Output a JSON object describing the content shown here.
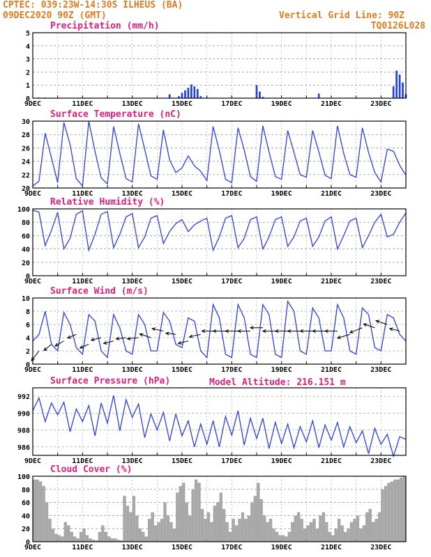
{
  "header": {
    "line1": "CPTEC:  039:23W-14:30S  ILHEUS (BA)",
    "line2": "09DEC2020 90Z (GMT)",
    "grid_note": "Vertical Grid Line: 90Z",
    "code": "TQ0126L028"
  },
  "model_altitude": "Model Altitude: 216.151  m",
  "colors": {
    "header": "#e07b1f",
    "title": "#e0207a",
    "line": "#2a3fe6",
    "bar": "#1f3fe6",
    "cloud": "#a8a8a8",
    "arrow": "#000000"
  },
  "chart_data": [
    {
      "type": "bar",
      "title": "Precipitation  (mm/h)",
      "ylim": [
        0,
        5
      ],
      "yticks": [
        0,
        1,
        2,
        3,
        4,
        5
      ],
      "x_tick_labels": [
        "9DEC",
        "11DEC",
        "13DEC",
        "15DEC",
        "17DEC",
        "19DEC",
        "21DEC",
        "23DEC"
      ],
      "x_range_days": [
        9,
        24
      ],
      "x_step_hours": 3,
      "series": [
        {
          "x_days": [
            9.25,
            9.5,
            14.5,
            14.875,
            15.0,
            15.125,
            15.25,
            15.375,
            15.5,
            15.625,
            15.75,
            16.0,
            18.0,
            18.125,
            18.25,
            20.5,
            23.5,
            23.625,
            23.75,
            23.875,
            24.0
          ],
          "values": [
            0.05,
            0.05,
            0.3,
            0.15,
            0.4,
            0.6,
            0.8,
            1.05,
            0.9,
            0.7,
            0.15,
            0.05,
            1.0,
            0.5,
            0.1,
            0.35,
            0.9,
            2.1,
            1.8,
            1.2,
            0.3
          ]
        }
      ]
    },
    {
      "type": "line",
      "title": "Surface Temperature (nC)",
      "ylim": [
        20,
        30
      ],
      "yticks": [
        20,
        22,
        24,
        26,
        28,
        30
      ],
      "x_tick_labels": [
        "9DEC",
        "11DEC",
        "13DEC",
        "15DEC",
        "17DEC",
        "19DEC",
        "21DEC",
        "23DEC"
      ],
      "x_range_days": [
        9,
        24
      ],
      "series": [
        {
          "x_days": [
            9.0,
            9.25,
            9.5,
            9.75,
            10.0,
            10.25,
            10.5,
            10.75,
            11.0,
            11.25,
            11.5,
            11.75,
            12.0,
            12.25,
            12.5,
            12.75,
            13.0,
            13.25,
            13.5,
            13.75,
            14.0,
            14.25,
            14.5,
            14.75,
            15.0,
            15.25,
            15.5,
            15.75,
            16.0,
            16.25,
            16.5,
            16.75,
            17.0,
            17.25,
            17.5,
            17.75,
            18.0,
            18.25,
            18.5,
            18.75,
            19.0,
            19.25,
            19.5,
            19.75,
            20.0,
            20.25,
            20.5,
            20.75,
            21.0,
            21.25,
            21.5,
            21.75,
            22.0,
            22.25,
            22.5,
            22.75,
            23.0,
            23.25,
            23.5,
            23.75,
            24.0
          ],
          "values": [
            20.3,
            21.0,
            28.2,
            24.5,
            20.8,
            29.8,
            26.5,
            21.4,
            20.3,
            30.0,
            25.5,
            21.5,
            20.6,
            29.2,
            25.2,
            21.4,
            20.9,
            29.6,
            25.8,
            21.8,
            21.3,
            28.7,
            24.2,
            22.3,
            23.0,
            24.8,
            23.3,
            22.5,
            21.1,
            29.2,
            25.6,
            21.3,
            20.8,
            29.0,
            25.7,
            21.7,
            21.0,
            29.3,
            25.4,
            21.7,
            21.3,
            28.6,
            25.3,
            22.0,
            21.6,
            28.6,
            25.4,
            21.9,
            21.4,
            29.3,
            25.2,
            22.0,
            21.6,
            29.0,
            25.3,
            22.3,
            20.9,
            25.8,
            25.5,
            23.4,
            21.9
          ]
        }
      ]
    },
    {
      "type": "line",
      "title": "Relative Humidity  (%)",
      "ylim": [
        0,
        100
      ],
      "yticks": [
        0,
        20,
        40,
        60,
        80,
        100
      ],
      "x_tick_labels": [
        "9DEC",
        "11DEC",
        "13DEC",
        "15DEC",
        "17DEC",
        "19DEC",
        "21DEC",
        "23DEC"
      ],
      "x_range_days": [
        9,
        24
      ],
      "series": [
        {
          "x_days": [
            9.0,
            9.25,
            9.5,
            9.75,
            10.0,
            10.25,
            10.5,
            10.75,
            11.0,
            11.25,
            11.5,
            11.75,
            12.0,
            12.25,
            12.5,
            12.75,
            13.0,
            13.25,
            13.5,
            13.75,
            14.0,
            14.25,
            14.5,
            14.75,
            15.0,
            15.25,
            15.5,
            15.75,
            16.0,
            16.25,
            16.5,
            16.75,
            17.0,
            17.25,
            17.5,
            17.75,
            18.0,
            18.25,
            18.5,
            18.75,
            19.0,
            19.25,
            19.5,
            19.75,
            20.0,
            20.25,
            20.5,
            20.75,
            21.0,
            21.25,
            21.5,
            21.75,
            22.0,
            22.25,
            22.5,
            22.75,
            23.0,
            23.25,
            23.5,
            23.75,
            24.0
          ],
          "values": [
            98,
            95,
            45,
            68,
            95,
            40,
            56,
            92,
            97,
            38,
            62,
            92,
            96,
            42,
            62,
            88,
            93,
            42,
            58,
            86,
            90,
            48,
            66,
            78,
            84,
            66,
            76,
            82,
            86,
            38,
            58,
            86,
            90,
            42,
            56,
            84,
            88,
            40,
            58,
            84,
            88,
            44,
            58,
            82,
            86,
            44,
            58,
            82,
            88,
            40,
            60,
            82,
            86,
            42,
            60,
            80,
            92,
            58,
            62,
            80,
            94
          ]
        }
      ]
    },
    {
      "type": "line",
      "title": "Surface Wind  (m/s)",
      "ylim": [
        0,
        10
      ],
      "yticks": [
        0,
        2,
        4,
        6,
        8,
        10
      ],
      "x_tick_labels": [
        "9DEC",
        "11DEC",
        "13DEC",
        "15DEC",
        "17DEC",
        "19DEC",
        "21DEC",
        "23DEC"
      ],
      "x_range_days": [
        9,
        24
      ],
      "series": [
        {
          "x_days": [
            9.0,
            9.25,
            9.5,
            9.75,
            10.0,
            10.25,
            10.5,
            10.75,
            11.0,
            11.25,
            11.5,
            11.75,
            12.0,
            12.25,
            12.5,
            12.75,
            13.0,
            13.25,
            13.5,
            13.75,
            14.0,
            14.25,
            14.5,
            14.75,
            15.0,
            15.25,
            15.5,
            15.75,
            16.0,
            16.25,
            16.5,
            16.75,
            17.0,
            17.25,
            17.5,
            17.75,
            18.0,
            18.25,
            18.5,
            18.75,
            19.0,
            19.25,
            19.5,
            19.75,
            20.0,
            20.25,
            20.5,
            20.75,
            21.0,
            21.25,
            21.5,
            21.75,
            22.0,
            22.25,
            22.5,
            22.75,
            23.0,
            23.25,
            23.5,
            23.75,
            24.0
          ],
          "values": [
            3.5,
            4.5,
            8.0,
            3.0,
            2.0,
            7.8,
            6.0,
            2.5,
            1.5,
            7.5,
            6.5,
            2.0,
            1.0,
            7.5,
            5.5,
            2.0,
            1.5,
            7.5,
            6.0,
            2.0,
            2.0,
            7.8,
            6.5,
            3.0,
            2.5,
            7.0,
            6.5,
            2.0,
            1.0,
            9.0,
            7.0,
            1.5,
            1.0,
            9.0,
            7.0,
            1.5,
            1.0,
            9.0,
            7.5,
            1.5,
            1.0,
            9.5,
            8.0,
            2.0,
            1.5,
            8.5,
            7.0,
            2.0,
            2.0,
            9.0,
            7.0,
            2.0,
            1.5,
            8.5,
            7.5,
            2.5,
            2.0,
            7.5,
            7.0,
            4.5,
            3.5
          ]
        }
      ],
      "wind_vectors": {
        "x_days": [
          9.25,
          9.75,
          10.25,
          10.75,
          11.25,
          11.75,
          12.25,
          12.75,
          13.25,
          13.75,
          14.25,
          14.75,
          15.25,
          15.75,
          16.25,
          16.75,
          17.25,
          17.75,
          18.25,
          18.75,
          19.25,
          19.75,
          20.25,
          20.75,
          21.25,
          21.75,
          22.25,
          22.75,
          23.25,
          23.75
        ],
        "y_values": [
          2,
          3,
          3.5,
          4.5,
          3,
          4,
          3.5,
          4,
          4,
          4,
          5,
          4.5,
          3.5,
          4.5,
          5,
          5,
          5,
          5,
          5.5,
          5,
          5,
          5,
          5,
          5,
          5,
          4.5,
          5.5,
          5.5,
          6,
          5
        ],
        "dx": [
          -0.6,
          -0.6,
          -0.7,
          -0.7,
          -0.7,
          -0.8,
          -0.8,
          -0.8,
          -0.9,
          -0.9,
          -0.9,
          -0.8,
          -0.8,
          -0.9,
          -0.9,
          -1.0,
          -1.0,
          -1.0,
          -1.0,
          -1.0,
          -1.0,
          -1.0,
          -1.0,
          -1.0,
          -1.0,
          -1.0,
          -1.0,
          -0.9,
          -0.9,
          -0.8
        ],
        "dy": [
          -0.8,
          -0.5,
          -0.4,
          -0.3,
          -0.3,
          -0.2,
          -0.2,
          -0.1,
          -0.1,
          0.3,
          0.2,
          0.1,
          -0.2,
          -0.2,
          0.0,
          0.0,
          0.0,
          0.0,
          0.0,
          0.0,
          0.0,
          0.0,
          0.0,
          0.0,
          0.0,
          -0.3,
          -0.4,
          0.3,
          0.3,
          0.2
        ]
      }
    },
    {
      "type": "line",
      "title": "Surface Pressure (hPa)",
      "ylim": [
        985,
        993
      ],
      "yticks": [
        986,
        988,
        990,
        992
      ],
      "x_tick_labels": [
        "9DEC",
        "11DEC",
        "13DEC",
        "15DEC",
        "17DEC",
        "19DEC",
        "21DEC",
        "23DEC"
      ],
      "x_range_days": [
        9,
        24
      ],
      "series": [
        {
          "x_days": [
            9.0,
            9.25,
            9.5,
            9.75,
            10.0,
            10.25,
            10.5,
            10.75,
            11.0,
            11.25,
            11.5,
            11.75,
            12.0,
            12.25,
            12.5,
            12.75,
            13.0,
            13.25,
            13.5,
            13.75,
            14.0,
            14.25,
            14.5,
            14.75,
            15.0,
            15.25,
            15.5,
            15.75,
            16.0,
            16.25,
            16.5,
            16.75,
            17.0,
            17.25,
            17.5,
            17.75,
            18.0,
            18.25,
            18.5,
            18.75,
            19.0,
            19.25,
            19.5,
            19.75,
            20.0,
            20.25,
            20.5,
            20.75,
            21.0,
            21.25,
            21.5,
            21.75,
            22.0,
            22.25,
            22.5,
            22.75,
            23.0,
            23.25,
            23.5,
            23.75,
            24.0
          ],
          "values": [
            990.3,
            991.8,
            989.0,
            991.2,
            989.8,
            991.3,
            987.8,
            990.5,
            989.0,
            990.9,
            987.3,
            991.2,
            988.8,
            992.1,
            987.9,
            991.6,
            989.5,
            991.1,
            987.1,
            989.9,
            988.0,
            990.1,
            986.7,
            989.9,
            987.3,
            989.1,
            986.0,
            988.7,
            986.3,
            989.1,
            986.0,
            989.6,
            987.4,
            990.3,
            986.2,
            989.4,
            987.0,
            989.4,
            985.8,
            988.9,
            986.4,
            988.7,
            985.9,
            988.4,
            986.6,
            989.1,
            985.9,
            988.6,
            986.8,
            988.9,
            986.0,
            988.4,
            986.5,
            987.9,
            985.2,
            988.2,
            986.3,
            987.5,
            984.9,
            987.2,
            986.9
          ]
        }
      ]
    },
    {
      "type": "bar",
      "title": "Cloud Cover  (%)",
      "ylim": [
        0,
        100
      ],
      "yticks": [
        0,
        20,
        40,
        60,
        80,
        100
      ],
      "x_tick_labels": [
        "9DEC",
        "11DEC",
        "13DEC",
        "15DEC",
        "17DEC",
        "19DEC",
        "21DEC",
        "23DEC"
      ],
      "x_range_days": [
        9,
        24
      ],
      "x_step_hours": 3,
      "series": [
        {
          "x_days": [
            9.0,
            9.125,
            9.25,
            9.375,
            9.5,
            9.625,
            9.75,
            9.875,
            10.0,
            10.125,
            10.25,
            10.375,
            10.5,
            10.625,
            10.75,
            10.875,
            11.0,
            11.125,
            11.25,
            11.375,
            11.5,
            11.625,
            11.75,
            11.875,
            12.0,
            12.125,
            12.25,
            12.375,
            12.5,
            12.625,
            12.75,
            12.875,
            13.0,
            13.125,
            13.25,
            13.375,
            13.5,
            13.625,
            13.75,
            13.875,
            14.0,
            14.125,
            14.25,
            14.375,
            14.5,
            14.625,
            14.75,
            14.875,
            15.0,
            15.125,
            15.25,
            15.375,
            15.5,
            15.625,
            15.75,
            15.875,
            16.0,
            16.125,
            16.25,
            16.375,
            16.5,
            16.625,
            16.75,
            16.875,
            17.0,
            17.125,
            17.25,
            17.375,
            17.5,
            17.625,
            17.75,
            17.875,
            18.0,
            18.125,
            18.25,
            18.375,
            18.5,
            18.625,
            18.75,
            18.875,
            19.0,
            19.125,
            19.25,
            19.375,
            19.5,
            19.625,
            19.75,
            19.875,
            20.0,
            20.125,
            20.25,
            20.375,
            20.5,
            20.625,
            20.75,
            20.875,
            21.0,
            21.125,
            21.25,
            21.375,
            21.5,
            21.625,
            21.75,
            21.875,
            22.0,
            22.125,
            22.25,
            22.375,
            22.5,
            22.625,
            22.75,
            22.875,
            23.0,
            23.125,
            23.25,
            23.375,
            23.5,
            23.625,
            23.75,
            23.875
          ],
          "values": [
            95,
            95,
            92,
            85,
            60,
            35,
            20,
            12,
            10,
            8,
            30,
            25,
            15,
            8,
            5,
            15,
            20,
            10,
            5,
            3,
            2,
            15,
            25,
            15,
            8,
            5,
            5,
            3,
            2,
            70,
            55,
            45,
            70,
            40,
            20,
            15,
            8,
            35,
            45,
            25,
            30,
            35,
            60,
            40,
            30,
            20,
            75,
            85,
            90,
            60,
            40,
            80,
            95,
            90,
            50,
            35,
            45,
            30,
            55,
            60,
            75,
            50,
            30,
            15,
            35,
            25,
            35,
            45,
            35,
            40,
            60,
            70,
            90,
            65,
            40,
            30,
            35,
            20,
            15,
            10,
            10,
            8,
            15,
            30,
            40,
            45,
            35,
            20,
            25,
            30,
            35,
            20,
            40,
            45,
            30,
            15,
            10,
            20,
            35,
            25,
            15,
            20,
            30,
            35,
            40,
            20,
            25,
            45,
            50,
            30,
            35,
            45,
            80,
            85,
            90,
            92,
            95,
            95,
            98,
            100
          ]
        }
      ]
    }
  ]
}
